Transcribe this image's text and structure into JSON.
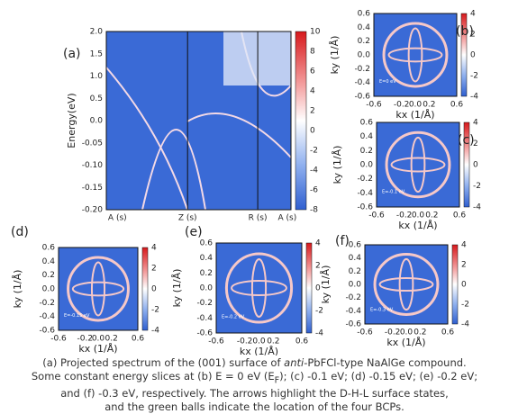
{
  "panels": [
    {
      "label": "(a)",
      "ylabel": "Energy(eV)",
      "yticks": [
        "2.0",
        "1.5",
        "1.0",
        "0.5",
        "0.0",
        "-0.05",
        "-0.10",
        "-0.15",
        "-0.20"
      ],
      "xticks": [
        "A (s)",
        "Z (s)",
        "R (s)",
        "A (s)"
      ],
      "colorbar": [
        "10",
        "8",
        "6",
        "4",
        "2",
        "0",
        "-2",
        "-4",
        "-6",
        "-8"
      ]
    },
    {
      "label": "(b)",
      "ylabel": "ky (1/Å)",
      "xlabel": "kx (1/Å)",
      "yticks": [
        "0.6",
        "0.4",
        "0.2",
        "0.0",
        "-0.2",
        "-0.4",
        "-0.6"
      ],
      "xticks": [
        "-0.6",
        "-0.2",
        "0.0",
        "0.2",
        "0.6"
      ],
      "colorbar": [
        "4",
        "2",
        "0",
        "-2",
        "-4"
      ],
      "inset": "E=0 eV"
    },
    {
      "label": "(c)",
      "ylabel": "ky (1/Å)",
      "xlabel": "kx (1/Å)",
      "yticks": [
        "0.6",
        "0.4",
        "0.2",
        "0.0",
        "-0.2",
        "-0.4",
        "-0.6"
      ],
      "xticks": [
        "-0.6",
        "-0.2",
        "0.0",
        "0.2",
        "0.6"
      ],
      "colorbar": [
        "4",
        "2",
        "0",
        "-2",
        "-4"
      ],
      "inset": "E=-0.1 eV"
    },
    {
      "label": "(d)",
      "ylabel": "ky (1/Å)",
      "xlabel": "kx (1/Å)",
      "yticks": [
        "0.6",
        "0.4",
        "0.2",
        "0.0",
        "-0.2",
        "-0.4",
        "-0.6"
      ],
      "xticks": [
        "-0.6",
        "-0.2",
        "0.0",
        "0.2",
        "0.6"
      ],
      "colorbar": [
        "4",
        "2",
        "0",
        "-2",
        "-4"
      ],
      "inset": "E=-0.15 eV"
    },
    {
      "label": "(e)",
      "ylabel": "ky (1/Å)",
      "xlabel": "kx (1/Å)",
      "yticks": [
        "0.6",
        "0.4",
        "0.2",
        "0.0",
        "-0.2",
        "-0.4",
        "-0.6"
      ],
      "xticks": [
        "-0.6",
        "-0.2",
        "0.0",
        "0.2",
        "0.6"
      ],
      "colorbar": [
        "4",
        "2",
        "0",
        "-2",
        "-4"
      ],
      "inset": "E=-0.2 eV"
    },
    {
      "label": "(f)",
      "ylabel": "ky (1/Å)",
      "xlabel": "kx (1/Å)",
      "yticks": [
        "0.6",
        "0.4",
        "0.2",
        "0.0",
        "-0.2",
        "-0.4",
        "-0.6"
      ],
      "xticks": [
        "-0.6",
        "-0.2",
        "0.0",
        "0.2",
        "0.6"
      ],
      "colorbar": [
        "4",
        "2",
        "0",
        "-2",
        "-4"
      ],
      "inset": "E=-0.3 eV"
    }
  ],
  "caption": {
    "lines": [
      [
        "(a) Projected spectrum of the (001) surface of ",
        "anti",
        "-PbFCl-type NaAlGe compound."
      ],
      [
        "Some constant energy slices at (b) E = 0 eV (E",
        "F",
        "); (c) -0.1 eV; (d) -0.15 eV; (e) -0.2 eV;"
      ],
      [
        "and (f) -0.3 eV, respectively. The arrows highlight the D-H-L surface states,"
      ],
      [
        "and the green balls indicate the location of the four BCPs."
      ]
    ]
  }
}
